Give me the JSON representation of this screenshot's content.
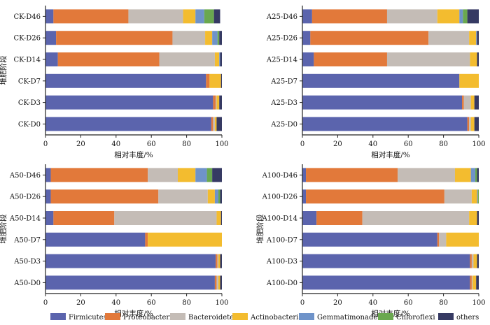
{
  "legend": [
    {
      "name": "Firmicutes",
      "color": "#5b64ad"
    },
    {
      "name": "Proteobacteria",
      "color": "#e2793a"
    },
    {
      "name": "Bacteroidetes",
      "color": "#c4bcb6"
    },
    {
      "name": "Actinobacteria",
      "color": "#f3bc2f"
    },
    {
      "name": "Gemmatimonadetes",
      "color": "#6f93c9"
    },
    {
      "name": "Chloroflexi",
      "color": "#6aa84f"
    },
    {
      "name": "others",
      "color": "#363a63"
    }
  ],
  "chart_data": [
    {
      "type": "bar",
      "orientation": "horizontal",
      "stacked": true,
      "xlabel": "相对丰度/%",
      "ylabel": "堆肥阶段",
      "xlim": [
        0,
        100
      ],
      "xticks": [
        "0",
        "20",
        "40",
        "60",
        "80",
        "100"
      ],
      "categories": [
        "CK-D46",
        "CK-D26",
        "CK-D14",
        "CK-D7",
        "CK-D3",
        "CK-D0"
      ],
      "series": [
        {
          "name": "Firmicutes",
          "values": [
            4.5,
            6,
            7,
            91,
            95,
            94
          ]
        },
        {
          "name": "Proteobacteria",
          "values": [
            42.5,
            66,
            57.5,
            2,
            1.5,
            1
          ]
        },
        {
          "name": "Bacteroidetes",
          "values": [
            31,
            18.5,
            31.5,
            0,
            0.5,
            1
          ]
        },
        {
          "name": "Actinobacteria",
          "values": [
            7,
            4,
            2.5,
            6.5,
            1.5,
            1
          ]
        },
        {
          "name": "Gemmatimonadetes",
          "values": [
            5,
            3,
            0.5,
            0,
            0,
            0
          ]
        },
        {
          "name": "Chloroflexi",
          "values": [
            5.5,
            1,
            0,
            0,
            0,
            0
          ]
        },
        {
          "name": "others",
          "values": [
            3.5,
            1.5,
            1,
            0.5,
            1.5,
            3
          ]
        }
      ]
    },
    {
      "type": "bar",
      "orientation": "horizontal",
      "stacked": true,
      "xlabel": "相对丰度/%",
      "ylabel": "",
      "xlim": [
        0,
        100
      ],
      "xticks": [
        "0",
        "20",
        "40",
        "60",
        "80",
        "100"
      ],
      "categories": [
        "A25-D46",
        "A25-D26",
        "A25-D14",
        "A25-D7",
        "A25-D3",
        "A25-D0"
      ],
      "series": [
        {
          "name": "Firmicutes",
          "values": [
            5.5,
            4.5,
            6.5,
            89,
            90.5,
            93.5
          ]
        },
        {
          "name": "Proteobacteria",
          "values": [
            42.5,
            67,
            41.5,
            0,
            1,
            1
          ]
        },
        {
          "name": "Bacteroidetes",
          "values": [
            28.5,
            23,
            47,
            0,
            4,
            1
          ]
        },
        {
          "name": "Actinobacteria",
          "values": [
            12.5,
            4,
            4,
            11,
            2,
            2
          ]
        },
        {
          "name": "Gemmatimonadetes",
          "values": [
            2,
            0.5,
            0,
            0,
            0,
            0
          ]
        },
        {
          "name": "Chloroflexi",
          "values": [
            2.5,
            0,
            0,
            0,
            0,
            0
          ]
        },
        {
          "name": "others",
          "values": [
            6.5,
            1,
            1,
            0,
            2.5,
            2.5
          ]
        }
      ]
    },
    {
      "type": "bar",
      "orientation": "horizontal",
      "stacked": true,
      "xlabel": "相对丰度/%",
      "ylabel": "堆肥阶段",
      "xlim": [
        0,
        100
      ],
      "xticks": [
        "0",
        "20",
        "40",
        "60",
        "80",
        "100"
      ],
      "categories": [
        "A50-D46",
        "A50-D26",
        "A50-D14",
        "A50-D7",
        "A50-D3",
        "A50-D0"
      ],
      "series": [
        {
          "name": "Firmicutes",
          "values": [
            3,
            3,
            4.5,
            56.5,
            96.5,
            96
          ]
        },
        {
          "name": "Proteobacteria",
          "values": [
            55,
            61,
            34.5,
            1.5,
            1,
            1
          ]
        },
        {
          "name": "Bacteroidetes",
          "values": [
            17,
            28,
            58,
            0,
            0.5,
            1
          ]
        },
        {
          "name": "Actinobacteria",
          "values": [
            10,
            4,
            2.5,
            42,
            1,
            1
          ]
        },
        {
          "name": "Gemmatimonadetes",
          "values": [
            6.5,
            2,
            0,
            0,
            0,
            0
          ]
        },
        {
          "name": "Chloroflexi",
          "values": [
            3,
            1,
            0,
            0,
            0,
            0
          ]
        },
        {
          "name": "others",
          "values": [
            5.5,
            1,
            0.5,
            0,
            1,
            1
          ]
        }
      ]
    },
    {
      "type": "bar",
      "orientation": "horizontal",
      "stacked": true,
      "xlabel": "相对丰度/%",
      "ylabel": "堆肥阶段",
      "xlim": [
        0,
        100
      ],
      "xticks": [
        "0",
        "20",
        "40",
        "60",
        "80",
        "100"
      ],
      "categories": [
        "A100-D46",
        "A100-D26",
        "A100-D14",
        "A100-D7",
        "A100-D3",
        "A100-D0"
      ],
      "series": [
        {
          "name": "Firmicutes",
          "values": [
            2,
            2,
            8,
            76.5,
            95,
            95
          ]
        },
        {
          "name": "Proteobacteria",
          "values": [
            52,
            78.5,
            26,
            1,
            1,
            1
          ]
        },
        {
          "name": "Bacteroidetes",
          "values": [
            32.5,
            15.5,
            60.5,
            4,
            1,
            0.5
          ]
        },
        {
          "name": "Actinobacteria",
          "values": [
            9,
            3,
            4.5,
            18.5,
            2,
            2
          ]
        },
        {
          "name": "Gemmatimonadetes",
          "values": [
            2.5,
            0.5,
            0,
            0,
            0,
            0
          ]
        },
        {
          "name": "Chloroflexi",
          "values": [
            1,
            0.5,
            0,
            0,
            0,
            0
          ]
        },
        {
          "name": "others",
          "values": [
            1,
            0,
            1,
            0,
            1,
            1.5
          ]
        }
      ]
    }
  ]
}
